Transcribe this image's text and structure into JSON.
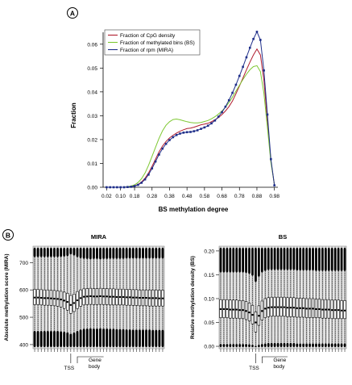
{
  "panel_a": {
    "label": "A",
    "chart_data": {
      "type": "line",
      "xlabel": "BS methylation degree",
      "ylabel": "Fraction",
      "xlim": [
        0,
        1
      ],
      "ylim": [
        0,
        0.065
      ],
      "x_ticks": [
        "0.02",
        "0.10",
        "0.18",
        "0.28",
        "0.38",
        "0.48",
        "0.58",
        "0.68",
        "0.78",
        "0.88",
        "0.98"
      ],
      "x_tick_values": [
        0.02,
        0.1,
        0.18,
        0.28,
        0.38,
        0.48,
        0.58,
        0.68,
        0.78,
        0.88,
        0.98
      ],
      "y_ticks": [
        "0.00",
        "0.01",
        "0.02",
        "0.03",
        "0.04",
        "0.05",
        "0.06"
      ],
      "y_tick_values": [
        0,
        0.01,
        0.02,
        0.03,
        0.04,
        0.05,
        0.06
      ],
      "grid": false,
      "legend_position": "top-left",
      "x": [
        0.02,
        0.04,
        0.06,
        0.08,
        0.1,
        0.12,
        0.14,
        0.16,
        0.18,
        0.2,
        0.22,
        0.24,
        0.26,
        0.28,
        0.3,
        0.32,
        0.34,
        0.36,
        0.38,
        0.4,
        0.42,
        0.44,
        0.46,
        0.48,
        0.5,
        0.52,
        0.54,
        0.56,
        0.58,
        0.6,
        0.62,
        0.64,
        0.66,
        0.68,
        0.7,
        0.72,
        0.74,
        0.76,
        0.78,
        0.8,
        0.82,
        0.84,
        0.86,
        0.88,
        0.9,
        0.92,
        0.94,
        0.96,
        0.98
      ],
      "series": [
        {
          "name": "Fraction of CpG density",
          "color": "#b01c2e",
          "values": [
            0,
            0,
            0,
            0,
            0,
            0,
            0.0001,
            0.0003,
            0.0006,
            0.0012,
            0.0022,
            0.0038,
            0.006,
            0.0088,
            0.0118,
            0.0148,
            0.0173,
            0.0192,
            0.0207,
            0.0218,
            0.0227,
            0.0235,
            0.0241,
            0.0246,
            0.0248,
            0.0252,
            0.0257,
            0.0262,
            0.0265,
            0.0268,
            0.0275,
            0.0283,
            0.0292,
            0.0305,
            0.032,
            0.0338,
            0.0362,
            0.0392,
            0.0425,
            0.0458,
            0.0492,
            0.0525,
            0.0555,
            0.058,
            0.0555,
            0.045,
            0.028,
            0.011,
            0.001
          ]
        },
        {
          "name": "Fraction of methylated bins (BS)",
          "color": "#7ec832",
          "values": [
            0,
            0,
            0,
            0,
            0,
            0,
            0.0002,
            0.0005,
            0.001,
            0.002,
            0.0036,
            0.006,
            0.0092,
            0.013,
            0.0168,
            0.0205,
            0.0237,
            0.026,
            0.0275,
            0.0284,
            0.0286,
            0.0283,
            0.0279,
            0.0275,
            0.0272,
            0.027,
            0.027,
            0.0272,
            0.0276,
            0.028,
            0.0287,
            0.0296,
            0.0307,
            0.032,
            0.0336,
            0.0355,
            0.0378,
            0.0403,
            0.0428,
            0.0452,
            0.0474,
            0.0493,
            0.0506,
            0.051,
            0.0485,
            0.0395,
            0.025,
            0.0105,
            0.001
          ]
        },
        {
          "name": "Fraction of rpm (MIRA)",
          "color": "#1f2f8a",
          "values": [
            0,
            0,
            0,
            0,
            0,
            0,
            0.0001,
            0.0002,
            0.0005,
            0.001,
            0.0019,
            0.0033,
            0.0053,
            0.0079,
            0.0108,
            0.0137,
            0.0162,
            0.0182,
            0.0198,
            0.021,
            0.0219,
            0.0225,
            0.0229,
            0.0231,
            0.0232,
            0.0235,
            0.0239,
            0.0245,
            0.0251,
            0.0258,
            0.0268,
            0.028,
            0.0296,
            0.0315,
            0.0338,
            0.0365,
            0.0396,
            0.043,
            0.0467,
            0.0505,
            0.0545,
            0.0585,
            0.0622,
            0.0652,
            0.0618,
            0.049,
            0.0305,
            0.0118,
            0.0008
          ]
        }
      ]
    }
  },
  "panel_b": {
    "label": "B",
    "charts": [
      {
        "title": "MIRA",
        "ylabel": "Absolute methylation score (MIRA)",
        "y_ticks": [
          "400",
          "500",
          "600",
          "700"
        ],
        "y_tick_values": [
          400,
          500,
          600,
          700
        ],
        "ylim": [
          385,
          760
        ],
        "tss_label": "TSS",
        "gene_body_label": "Gene\nbody",
        "gene_body_line1": "Gene",
        "gene_body_line2": "body",
        "chart_data": {
          "type": "box",
          "n_boxes": 40,
          "tss_index": 11,
          "medians": [
            572,
            572,
            571,
            570,
            570,
            569,
            568,
            567,
            565,
            561,
            556,
            545,
            552,
            562,
            570,
            575,
            576,
            577,
            576,
            576,
            577,
            576,
            576,
            575,
            575,
            574,
            574,
            574,
            573,
            573,
            572,
            572,
            571,
            571,
            571,
            570,
            570,
            570,
            569,
            569
          ],
          "q1": [
            546,
            546,
            545,
            544,
            544,
            543,
            542,
            540,
            537,
            532,
            526,
            514,
            521,
            532,
            540,
            545,
            546,
            547,
            546,
            546,
            547,
            546,
            546,
            545,
            545,
            545,
            545,
            545,
            544,
            544,
            543,
            543,
            542,
            542,
            542,
            541,
            541,
            541,
            541,
            541
          ],
          "q3": [
            602,
            602,
            601,
            600,
            600,
            599,
            598,
            597,
            595,
            592,
            588,
            580,
            585,
            594,
            600,
            604,
            605,
            606,
            605,
            605,
            606,
            605,
            605,
            604,
            604,
            603,
            603,
            603,
            602,
            602,
            601,
            601,
            600,
            600,
            600,
            600,
            600,
            600,
            599,
            599
          ],
          "whisker_low": [
            450,
            450,
            450,
            450,
            450,
            450,
            450,
            450,
            449,
            447,
            445,
            440,
            444,
            450,
            455,
            458,
            459,
            460,
            459,
            459,
            460,
            459,
            459,
            458,
            458,
            457,
            457,
            457,
            456,
            456,
            455,
            455,
            455,
            455,
            455,
            455,
            454,
            454,
            454,
            454
          ],
          "whisker_high": [
            720,
            720,
            720,
            720,
            720,
            720,
            720,
            720,
            721,
            722,
            724,
            730,
            726,
            720,
            716,
            714,
            713,
            712,
            713,
            713,
            712,
            713,
            713,
            714,
            714,
            714,
            714,
            714,
            715,
            715,
            715,
            715,
            715,
            715,
            715,
            715,
            715,
            715,
            715,
            715
          ]
        }
      },
      {
        "title": "BS",
        "ylabel": "Relative methylation density (BS)",
        "y_ticks": [
          "0.00",
          "0.05",
          "0.10",
          "0.15",
          "0.20"
        ],
        "y_tick_values": [
          0,
          0.05,
          0.1,
          0.15,
          0.2
        ],
        "ylim": [
          -0.005,
          0.21
        ],
        "tss_label": "TSS",
        "gene_body_line1": "Gene",
        "gene_body_line2": "body",
        "chart_data": {
          "type": "box",
          "n_boxes": 40,
          "tss_index": 11,
          "medians": [
            0.078,
            0.078,
            0.078,
            0.077,
            0.077,
            0.077,
            0.076,
            0.076,
            0.074,
            0.071,
            0.066,
            0.05,
            0.064,
            0.074,
            0.079,
            0.081,
            0.082,
            0.082,
            0.082,
            0.082,
            0.082,
            0.081,
            0.081,
            0.081,
            0.08,
            0.08,
            0.08,
            0.079,
            0.079,
            0.079,
            0.078,
            0.078,
            0.077,
            0.077,
            0.077,
            0.076,
            0.076,
            0.076,
            0.075,
            0.075
          ],
          "q1": [
            0.06,
            0.06,
            0.06,
            0.059,
            0.059,
            0.059,
            0.058,
            0.058,
            0.056,
            0.053,
            0.047,
            0.03,
            0.044,
            0.055,
            0.06,
            0.062,
            0.063,
            0.063,
            0.063,
            0.063,
            0.063,
            0.062,
            0.062,
            0.062,
            0.061,
            0.061,
            0.061,
            0.06,
            0.06,
            0.06,
            0.06,
            0.06,
            0.059,
            0.059,
            0.059,
            0.058,
            0.058,
            0.058,
            0.058,
            0.058
          ],
          "q3": [
            0.098,
            0.098,
            0.098,
            0.097,
            0.097,
            0.097,
            0.096,
            0.096,
            0.094,
            0.091,
            0.086,
            0.072,
            0.085,
            0.095,
            0.1,
            0.102,
            0.103,
            0.103,
            0.103,
            0.103,
            0.103,
            0.102,
            0.102,
            0.102,
            0.101,
            0.101,
            0.101,
            0.1,
            0.1,
            0.1,
            0.099,
            0.099,
            0.098,
            0.098,
            0.098,
            0.097,
            0.097,
            0.097,
            0.096,
            0.096
          ],
          "whisker_low": [
            0.005,
            0.005,
            0.005,
            0.005,
            0.005,
            0.005,
            0.005,
            0.005,
            0.005,
            0.004,
            0.003,
            0.001,
            0.003,
            0.005,
            0.006,
            0.007,
            0.007,
            0.007,
            0.007,
            0.007,
            0.007,
            0.007,
            0.007,
            0.007,
            0.006,
            0.006,
            0.006,
            0.006,
            0.006,
            0.006,
            0.006,
            0.006,
            0.006,
            0.006,
            0.006,
            0.006,
            0.006,
            0.006,
            0.006,
            0.006
          ],
          "whisker_high": [
            0.155,
            0.155,
            0.155,
            0.155,
            0.155,
            0.155,
            0.155,
            0.155,
            0.154,
            0.152,
            0.148,
            0.135,
            0.146,
            0.155,
            0.158,
            0.16,
            0.16,
            0.16,
            0.16,
            0.16,
            0.16,
            0.16,
            0.16,
            0.16,
            0.159,
            0.159,
            0.159,
            0.159,
            0.159,
            0.159,
            0.158,
            0.158,
            0.158,
            0.158,
            0.158,
            0.158,
            0.158,
            0.158,
            0.158,
            0.158
          ]
        }
      }
    ]
  }
}
